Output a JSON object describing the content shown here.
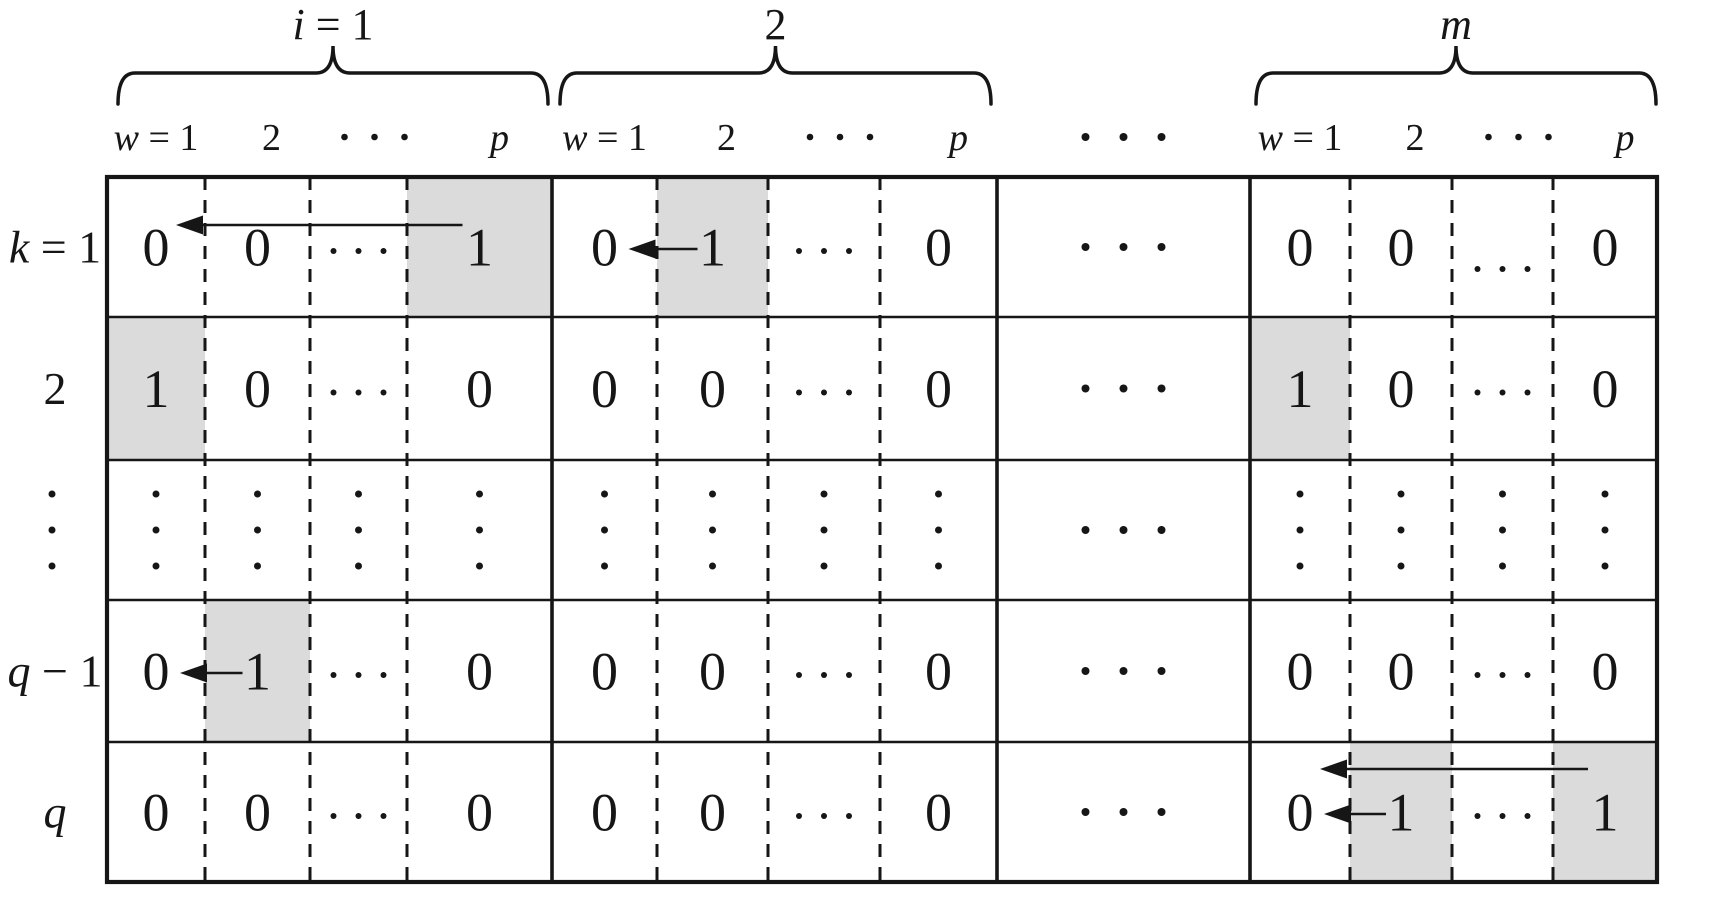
{
  "figure": {
    "type": "block-matrix-diagram",
    "background": "#ffffff",
    "ink_color": "#161616",
    "shade_color": "#dbdbdb",
    "braces": [
      {
        "label": "i = 1"
      },
      {
        "label": "2"
      },
      {
        "label": "m"
      }
    ],
    "block_column_headers": [
      "w = 1",
      "2",
      "⋯",
      "p"
    ],
    "gap_ellipsis": "⋯",
    "row_labels": [
      "k = 1",
      "2",
      "⋮",
      "q − 1",
      "q"
    ],
    "rows": [
      {
        "label": "k = 1",
        "blocks": [
          {
            "cells": [
              {
                "v": "0"
              },
              {
                "v": "0"
              },
              {
                "v": "⋯"
              },
              {
                "v": "1",
                "shaded": true
              }
            ]
          },
          {
            "cells": [
              {
                "v": "0"
              },
              {
                "v": "1",
                "shaded": true
              },
              {
                "v": "⋯"
              },
              {
                "v": "0"
              }
            ]
          },
          {
            "ellipsis": "⋯"
          },
          {
            "cells": [
              {
                "v": "0"
              },
              {
                "v": "0"
              },
              {
                "v": "⋯",
                "low": true
              },
              {
                "v": "0"
              }
            ]
          }
        ]
      },
      {
        "label": "2",
        "blocks": [
          {
            "cells": [
              {
                "v": "1",
                "shaded": true
              },
              {
                "v": "0"
              },
              {
                "v": "⋯"
              },
              {
                "v": "0"
              }
            ]
          },
          {
            "cells": [
              {
                "v": "0"
              },
              {
                "v": "0"
              },
              {
                "v": "⋯"
              },
              {
                "v": "0"
              }
            ]
          },
          {
            "ellipsis": "⋯"
          },
          {
            "cells": [
              {
                "v": "1",
                "shaded": true
              },
              {
                "v": "0"
              },
              {
                "v": "⋯"
              },
              {
                "v": "0"
              }
            ]
          }
        ]
      },
      {
        "label": "⋮",
        "blocks": [
          {
            "cells": [
              {
                "v": "⋮"
              },
              {
                "v": "⋮"
              },
              {
                "v": "⋮"
              },
              {
                "v": "⋮"
              }
            ]
          },
          {
            "cells": [
              {
                "v": "⋮"
              },
              {
                "v": "⋮"
              },
              {
                "v": "⋮"
              },
              {
                "v": "⋮"
              }
            ]
          },
          {
            "ellipsis": "⋯"
          },
          {
            "cells": [
              {
                "v": "⋮"
              },
              {
                "v": "⋮"
              },
              {
                "v": "⋮"
              },
              {
                "v": "⋮"
              }
            ]
          }
        ]
      },
      {
        "label": "q − 1",
        "blocks": [
          {
            "cells": [
              {
                "v": "0"
              },
              {
                "v": "1",
                "shaded": true
              },
              {
                "v": "⋯"
              },
              {
                "v": "0"
              }
            ]
          },
          {
            "cells": [
              {
                "v": "0"
              },
              {
                "v": "0"
              },
              {
                "v": "⋯"
              },
              {
                "v": "0"
              }
            ]
          },
          {
            "ellipsis": "⋯"
          },
          {
            "cells": [
              {
                "v": "0"
              },
              {
                "v": "0"
              },
              {
                "v": "⋯"
              },
              {
                "v": "0"
              }
            ]
          }
        ]
      },
      {
        "label": "q",
        "blocks": [
          {
            "cells": [
              {
                "v": "0"
              },
              {
                "v": "0"
              },
              {
                "v": "⋯"
              },
              {
                "v": "0"
              }
            ]
          },
          {
            "cells": [
              {
                "v": "0"
              },
              {
                "v": "0"
              },
              {
                "v": "⋯"
              },
              {
                "v": "0"
              }
            ]
          },
          {
            "ellipsis": "⋯"
          },
          {
            "cells": [
              {
                "v": "0"
              },
              {
                "v": "1",
                "shaded": true
              },
              {
                "v": "⋯"
              },
              {
                "v": "1",
                "shaded": true
              }
            ]
          }
        ]
      }
    ],
    "arrows": [
      {
        "row": 0,
        "block": 0,
        "from_col": 3,
        "to_col": 0,
        "kind": "long"
      },
      {
        "row": 0,
        "block": 1,
        "from_col": 1,
        "to_col": 0,
        "kind": "short"
      },
      {
        "row": 3,
        "block": 0,
        "from_col": 1,
        "to_col": 0,
        "kind": "short"
      },
      {
        "row": 4,
        "block": 3,
        "from_col": 3,
        "to_col": 0,
        "kind": "long"
      },
      {
        "row": 4,
        "block": 3,
        "from_col": 1,
        "to_col": 0,
        "kind": "short"
      }
    ]
  }
}
